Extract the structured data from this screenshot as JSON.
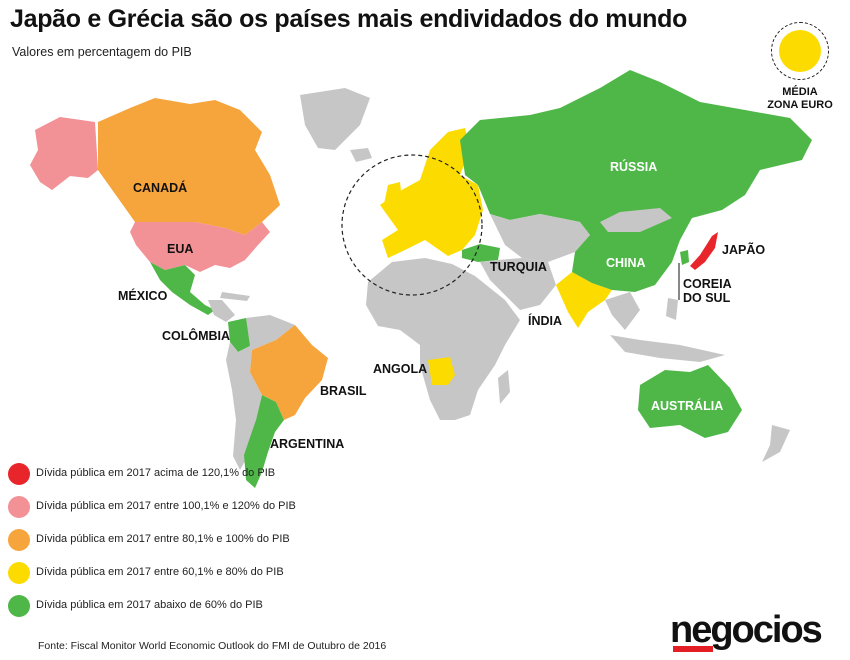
{
  "title": "Japão e Grécia são os países mais endividados do mundo",
  "subtitle": "Valores em percentagem do PIB",
  "colors": {
    "red": "#e8252b",
    "pink": "#f29196",
    "orange": "#f6a43c",
    "yellow": "#fcdc00",
    "green": "#4fb748",
    "gray": "#c6c6c6"
  },
  "euro_inset": {
    "label_line1": "MÉDIA",
    "label_line2": "ZONA EURO",
    "category": "yellow"
  },
  "country_labels": {
    "canada": "CANADÁ",
    "eua": "EUA",
    "mexico": "MÉXICO",
    "colombia": "COLÔMBIA",
    "brasil": "BRASIL",
    "argentina": "ARGENTINA",
    "russia": "RÚSSIA",
    "turquia": "TURQUIA",
    "china": "CHINA",
    "japao": "JAPÃO",
    "coreia1": "COREIA",
    "coreia2": "DO SUL",
    "india": "ÍNDIA",
    "angola": "ANGOLA",
    "australia": "AUSTRÁLIA"
  },
  "country_categories": {
    "Japão": "red",
    "Canadá": "orange",
    "EUA": "pink",
    "México": "green",
    "Colômbia": "green",
    "Brasil": "orange",
    "Argentina": "green",
    "Rússia": "green",
    "Turquia": "green",
    "China": "green",
    "Coreia do Sul": "green",
    "Índia": "yellow",
    "Angola": "yellow",
    "Austrália": "green",
    "Zona Euro": "yellow"
  },
  "legend": [
    {
      "color": "#e8252b",
      "text": "Dívida pública em 2017 acima de 120,1% do PIB"
    },
    {
      "color": "#f29196",
      "text": "Dívida pública em 2017 entre 100,1% e 120% do PIB"
    },
    {
      "color": "#f6a43c",
      "text": "Dívida pública em 2017 entre 80,1% e 100% do PIB"
    },
    {
      "color": "#fcdc00",
      "text": "Dívida pública em 2017 entre 60,1% e 80% do PIB"
    },
    {
      "color": "#4fb748",
      "text": "Dívida pública em 2017 abaixo de 60% do PIB"
    }
  ],
  "source": "Fonte: Fiscal Monitor World Economic Outlook do FMI de Outubro de 2016",
  "logo": "negocios"
}
